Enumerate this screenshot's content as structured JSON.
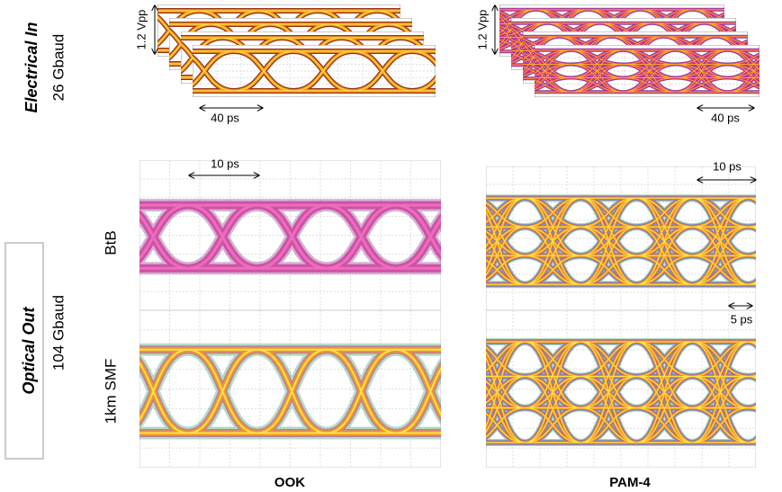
{
  "electrical": {
    "title": "Electrical In",
    "baud": "26 Gbaud",
    "ook": {
      "amplitude": "1.2 Vpp",
      "time": "40 ps"
    },
    "pam4": {
      "amplitude": "1.2 Vpp",
      "time": "40 ps"
    }
  },
  "optical": {
    "title": "Optical Out",
    "baud": "104 Gbaud",
    "rows": [
      "BtB",
      "1km SMF"
    ],
    "ook": {
      "time": "10 ps"
    },
    "pam4": {
      "time": "10 ps",
      "time_small": "5 ps"
    }
  },
  "columns": [
    "OOK",
    "PAM-4"
  ]
}
